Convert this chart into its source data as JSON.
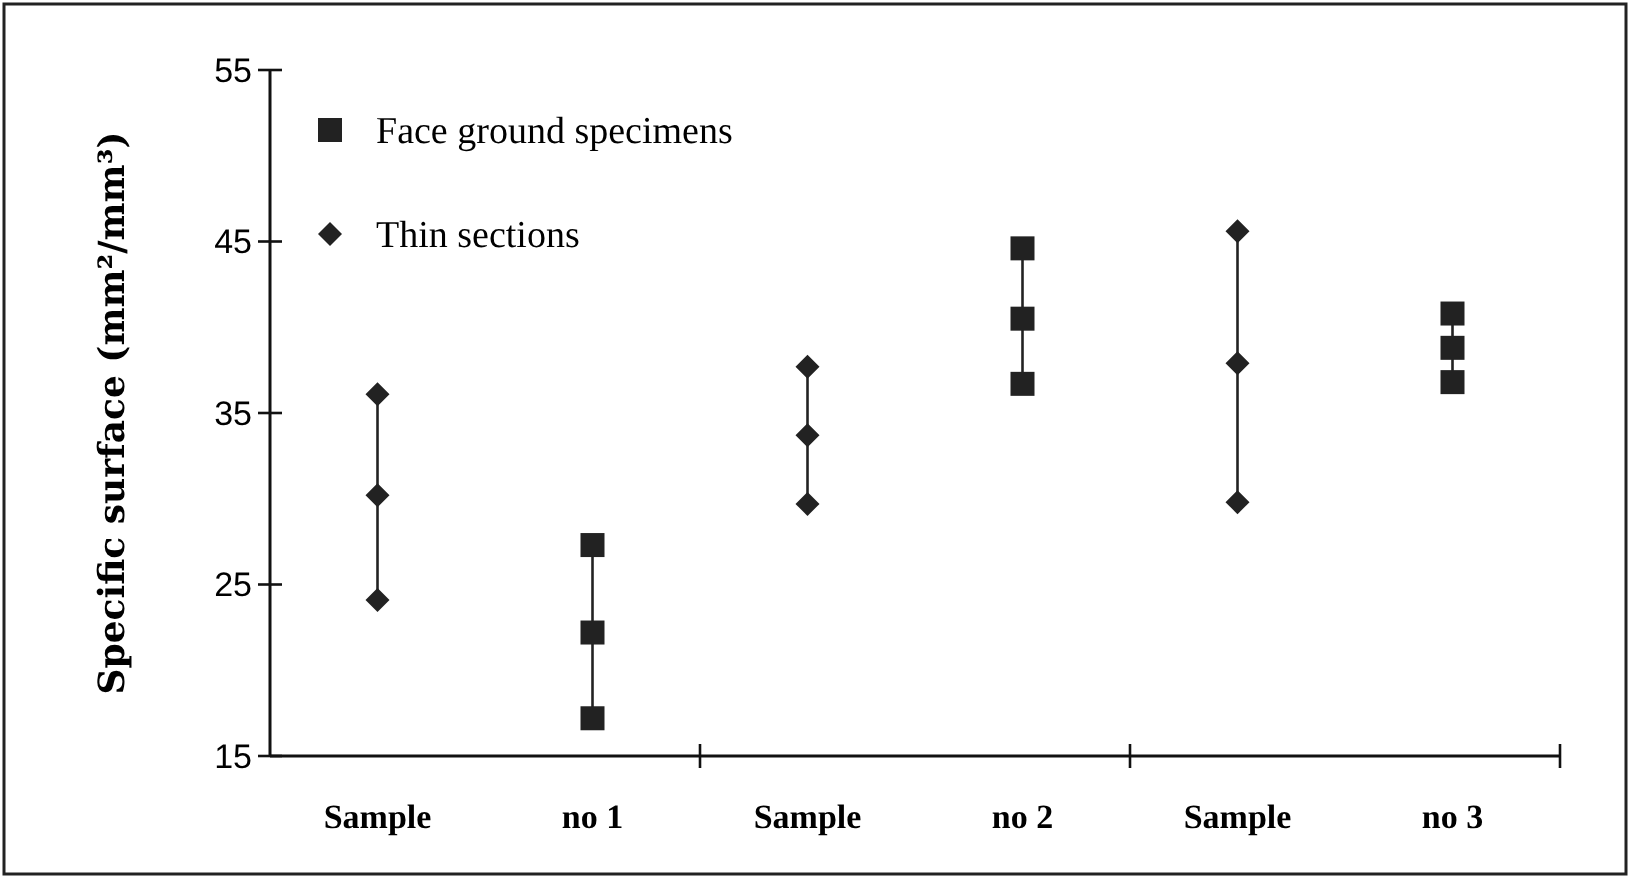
{
  "chart_data": {
    "type": "scatter",
    "ylabel": "Specific surface (mm²/mm³)",
    "categories": [
      "Sample",
      "no 1",
      "Sample",
      "no 2",
      "Sample",
      "no 3"
    ],
    "ylim": [
      15,
      55
    ],
    "yticks": [
      15,
      25,
      35,
      45,
      55
    ],
    "legend": "top left",
    "grid": false,
    "series": [
      {
        "name": "Face ground specimens",
        "color": "#222222",
        "marker": "square",
        "values": [
          null,
          22.2,
          null,
          40.5,
          null,
          38.8
        ]
      },
      {
        "name": "Thin sections",
        "color": "#222222",
        "marker": "diamond",
        "values": [
          30.2,
          null,
          33.7,
          null,
          37.9,
          null
        ]
      },
      {
        "color": "#222222",
        "marker": "square",
        "values": [
          null,
          27.3,
          null,
          44.6,
          null,
          40.8
        ]
      },
      {
        "color": "#222222",
        "marker": "square",
        "values": [
          null,
          17.2,
          null,
          36.7,
          null,
          36.8
        ]
      },
      {
        "color": "#222222",
        "marker": "diamond",
        "values": [
          36.1,
          null,
          37.7,
          null,
          45.6,
          null
        ]
      },
      {
        "color": "#222222",
        "marker": "diamond",
        "values": [
          24.1,
          null,
          29.7,
          null,
          29.8,
          null
        ]
      }
    ]
  }
}
